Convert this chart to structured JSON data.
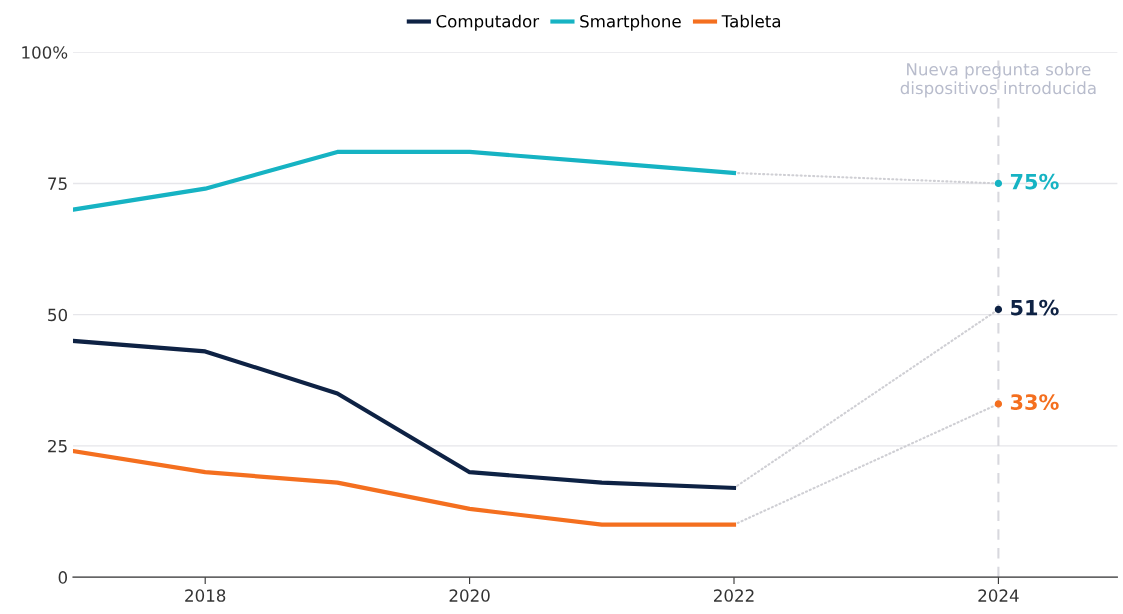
{
  "chart_data": {
    "type": "line",
    "x": [
      2017,
      2018,
      2019,
      2020,
      2021,
      2022,
      2024
    ],
    "series": [
      {
        "name": "Computador",
        "color": "#0e2244",
        "values": [
          45,
          43,
          35,
          20,
          18,
          17,
          null
        ]
      },
      {
        "name": "Smartphone",
        "color": "#16b3c3",
        "values": [
          70,
          74,
          81,
          81,
          79,
          77,
          null
        ]
      },
      {
        "name": "Tableta",
        "color": "#f46f1f",
        "values": [
          24,
          20,
          18,
          13,
          10,
          10,
          null
        ]
      },
      {
        "color": "#cfcfd4",
        "values": [
          null,
          null,
          null,
          null,
          null,
          77,
          75
        ],
        "line_style": "dotted"
      },
      {
        "color": "#cfcfd4",
        "values": [
          null,
          null,
          null,
          null,
          null,
          17,
          51
        ],
        "line_style": "dotted"
      },
      {
        "color": "#cfcfd4",
        "values": [
          null,
          null,
          null,
          null,
          null,
          10,
          33
        ],
        "line_style": "dotted"
      },
      {
        "type": "scatter",
        "color": "#16b3c3",
        "values": [
          null,
          null,
          null,
          null,
          null,
          null,
          75
        ],
        "value_labels": [
          null,
          null,
          null,
          null,
          null,
          null,
          "75%"
        ]
      },
      {
        "type": "scatter",
        "color": "#0e2244",
        "values": [
          null,
          null,
          null,
          null,
          null,
          null,
          51
        ],
        "value_labels": [
          null,
          null,
          null,
          null,
          null,
          null,
          "51%"
        ]
      },
      {
        "type": "scatter",
        "color": "#f46f1f",
        "values": [
          null,
          null,
          null,
          null,
          null,
          null,
          33
        ],
        "value_labels": [
          null,
          null,
          null,
          null,
          null,
          null,
          "33%"
        ]
      }
    ],
    "xlim": [
      2017,
      2024.9
    ],
    "xticks": [
      2018,
      2020,
      2022,
      2024
    ],
    "ylim": [
      0,
      100
    ],
    "yticks": [
      0,
      25,
      50,
      75,
      {
        "value": 100,
        "label": "100%"
      }
    ],
    "grid": "y",
    "legend": "top",
    "line_style": "solid",
    "ref_lines": [
      {
        "axis": "x",
        "value": 2024,
        "label": "Nueva pregunta sobre\ndispositivos introducida",
        "color": "#d8d8de",
        "line_style": "dashed"
      }
    ]
  }
}
